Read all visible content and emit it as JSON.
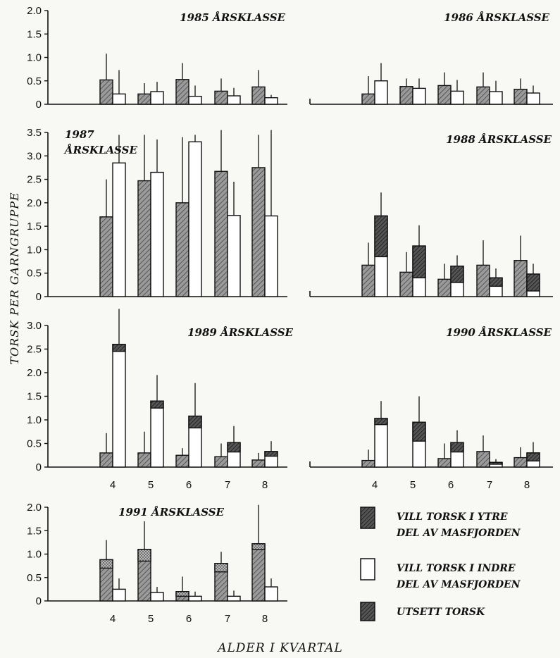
{
  "chart_data": {
    "type": "bar",
    "ylabel": "TORSK PER GARNGRUPPE",
    "xlabel": "ALDER I KVARTAL",
    "categories": [
      "4",
      "5",
      "6",
      "7",
      "8"
    ],
    "legend": [
      {
        "key": "ytre",
        "label_lines": [
          "VILL TORSK I YTRE",
          "DEL AV MASFJORDEN"
        ]
      },
      {
        "key": "indre",
        "label_lines": [
          "VILL TORSK I INDRE",
          "DEL AV MASFJORDEN"
        ]
      },
      {
        "key": "utsett",
        "label_lines": [
          "UTSETT TORSK"
        ]
      }
    ],
    "colors": {
      "ytre": "#6e6e6e",
      "indre": "#ffffff",
      "utsett": "#3a3a3a",
      "ink": "#111111"
    },
    "panels": [
      {
        "key": "p1985",
        "title_lines": [
          "1985 ÅRSKLASSE"
        ],
        "ylim": [
          0,
          2.0
        ],
        "yticks": [
          "0",
          "0.5",
          "1.0",
          "1.5",
          "2.0"
        ],
        "show_xticks": false,
        "ytre": {
          "total": [
            0.52,
            0.22,
            0.53,
            0.28,
            0.37
          ],
          "utsett": [
            0,
            0,
            0,
            0,
            0
          ],
          "err": [
            1.08,
            0.45,
            0.88,
            0.55,
            0.73
          ]
        },
        "indre": {
          "total": [
            0.22,
            0.27,
            0.17,
            0.18,
            0.14
          ],
          "utsett": [
            0,
            0,
            0,
            0,
            0
          ],
          "err": [
            0.73,
            0.48,
            0.4,
            0.35,
            0.2
          ]
        }
      },
      {
        "key": "p1986",
        "title_lines": [
          "1986 ÅRSKLASSE"
        ],
        "ylim": [
          0,
          2.0
        ],
        "yticks": [],
        "show_xticks": false,
        "ytre": {
          "total": [
            0.22,
            0.38,
            0.4,
            0.37,
            0.32
          ],
          "utsett": [
            0,
            0,
            0,
            0,
            0
          ],
          "err": [
            0.6,
            0.55,
            0.68,
            0.68,
            0.55
          ]
        },
        "indre": {
          "total": [
            0.5,
            0.34,
            0.28,
            0.27,
            0.24
          ],
          "utsett": [
            0,
            0,
            0,
            0,
            0
          ],
          "err": [
            0.88,
            0.55,
            0.52,
            0.5,
            0.4
          ]
        }
      },
      {
        "key": "p1987",
        "title_lines": [
          "1987",
          "ÅRSKLASSE"
        ],
        "ylim": [
          0,
          3.5
        ],
        "yticks": [
          "0",
          "0.5",
          "1.0",
          "1.5",
          "2.0",
          "2.5",
          "3.0",
          "3.5"
        ],
        "show_xticks": false,
        "ytre": {
          "total": [
            1.7,
            2.47,
            2.0,
            2.67,
            2.75
          ],
          "utsett": [
            0,
            0,
            0,
            0,
            0
          ],
          "err": [
            2.5,
            3.45,
            3.4,
            3.55,
            3.45
          ]
        },
        "indre": {
          "total": [
            2.85,
            2.65,
            3.3,
            1.73,
            1.72
          ],
          "utsett": [
            0,
            0,
            0,
            0,
            0
          ],
          "err": [
            3.45,
            3.35,
            3.45,
            2.45,
            3.55
          ]
        }
      },
      {
        "key": "p1988",
        "title_lines": [
          "1988 ÅRSKLASSE"
        ],
        "ylim": [
          0,
          3.5
        ],
        "yticks": [],
        "show_xticks": false,
        "ytre": {
          "total": [
            0.67,
            0.52,
            0.37,
            0.67,
            0.77
          ],
          "utsett": [
            0,
            0,
            0,
            0,
            0
          ],
          "err": [
            1.15,
            0.95,
            0.7,
            1.2,
            1.3
          ]
        },
        "indre": {
          "total": [
            1.72,
            1.08,
            0.65,
            0.4,
            0.48
          ],
          "utsett": [
            0.85,
            0.4,
            0.3,
            0.22,
            0.12
          ],
          "err": [
            2.22,
            1.52,
            0.88,
            0.6,
            0.7
          ]
        }
      },
      {
        "key": "p1989",
        "title_lines": [
          "1989 ÅRSKLASSE"
        ],
        "ylim": [
          0,
          3.0
        ],
        "yticks": [
          "0",
          "0.5",
          "1.0",
          "1.5",
          "2.0",
          "2.5",
          "3.0"
        ],
        "show_xticks": true,
        "ytre": {
          "total": [
            0.3,
            0.3,
            0.25,
            0.22,
            0.15
          ],
          "utsett": [
            0,
            0,
            0,
            0,
            0
          ],
          "err": [
            0.72,
            0.75,
            0.4,
            0.5,
            0.3
          ]
        },
        "indre": {
          "total": [
            2.6,
            1.4,
            1.08,
            0.52,
            0.33
          ],
          "utsett": [
            2.45,
            1.25,
            0.83,
            0.32,
            0.23
          ],
          "err": [
            3.35,
            1.95,
            1.78,
            0.87,
            0.55
          ]
        }
      },
      {
        "key": "p1990",
        "title_lines": [
          "1990 ÅRSKLASSE"
        ],
        "ylim": [
          0,
          3.0
        ],
        "yticks": [],
        "show_xticks": true,
        "ytre": {
          "total": [
            0.14,
            0,
            0.18,
            0.33,
            0.2
          ],
          "utsett": [
            0,
            0,
            0,
            0,
            0
          ],
          "err": [
            0.37,
            0,
            0.5,
            0.67,
            0.42
          ]
        },
        "indre": {
          "total": [
            1.03,
            0.95,
            0.52,
            0.1,
            0.3
          ],
          "utsett": [
            0.9,
            0.55,
            0.32,
            0.06,
            0.13
          ],
          "err": [
            1.4,
            1.5,
            0.78,
            0.17,
            0.53
          ]
        }
      },
      {
        "key": "p1991",
        "title_lines": [
          "1991 ÅRSKLASSE"
        ],
        "ylim": [
          0,
          2.0
        ],
        "yticks": [
          "0",
          "0.5",
          "1.0",
          "1.5",
          "2.0"
        ],
        "show_xticks": true,
        "ytre": {
          "total": [
            0.88,
            1.1,
            0.2,
            0.8,
            1.22
          ],
          "utsett": [
            0.7,
            0.85,
            0.1,
            0.62,
            1.1
          ],
          "err": [
            1.3,
            1.7,
            0.52,
            1.05,
            2.05
          ]
        },
        "indre": {
          "total": [
            0.25,
            0.18,
            0.1,
            0.1,
            0.3
          ],
          "utsett": [
            0,
            0,
            0,
            0,
            0
          ],
          "err": [
            0.48,
            0.3,
            0.2,
            0.22,
            0.48
          ]
        }
      }
    ]
  }
}
